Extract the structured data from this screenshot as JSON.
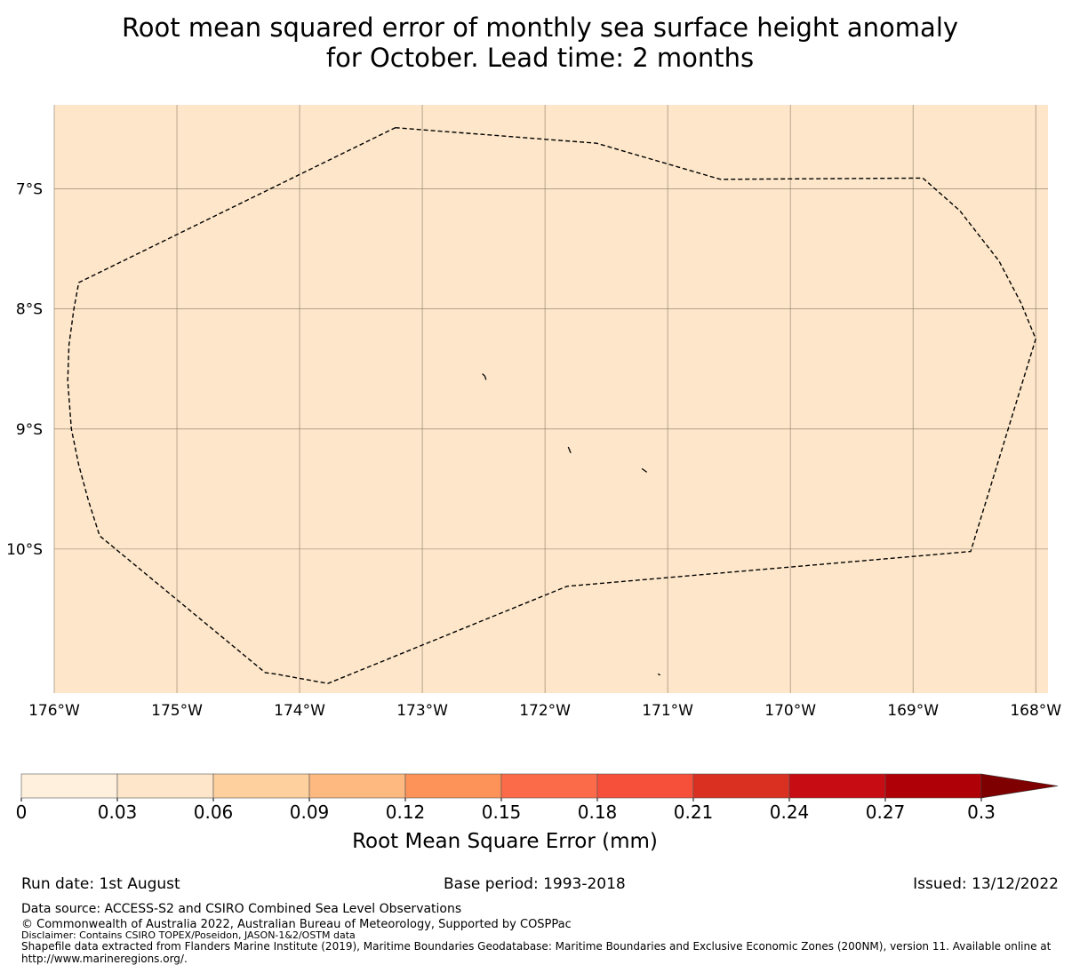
{
  "title": {
    "line1": "Root mean squared error of monthly sea surface height anomaly",
    "line2": "for October. Lead time: 2 months"
  },
  "map": {
    "background_color": "#fde6c9",
    "lon_range": [
      -176.0,
      -167.9
    ],
    "lat_range": [
      -11.2,
      -6.3
    ],
    "lat_ticks": [
      {
        "value": -7,
        "label": "7°S"
      },
      {
        "value": -8,
        "label": "8°S"
      },
      {
        "value": -9,
        "label": "9°S"
      },
      {
        "value": -10,
        "label": "10°S"
      }
    ],
    "lon_ticks": [
      {
        "value": -176,
        "label": "176°W"
      },
      {
        "value": -175,
        "label": "175°W"
      },
      {
        "value": -174,
        "label": "174°W"
      },
      {
        "value": -173,
        "label": "173°W"
      },
      {
        "value": -172,
        "label": "172°W"
      },
      {
        "value": -171,
        "label": "171°W"
      },
      {
        "value": -170,
        "label": "170°W"
      },
      {
        "value": -169,
        "label": "169°W"
      },
      {
        "value": -168,
        "label": "168°W"
      }
    ],
    "eez_boundary": [
      [
        -173.22,
        -6.49
      ],
      [
        -171.58,
        -6.62
      ],
      [
        -170.57,
        -6.92
      ],
      [
        -168.92,
        -6.91
      ],
      [
        -168.62,
        -7.18
      ],
      [
        -168.3,
        -7.6
      ],
      [
        -168.12,
        -7.95
      ],
      [
        -168.0,
        -8.25
      ],
      [
        -168.53,
        -10.02
      ],
      [
        -171.82,
        -10.31
      ],
      [
        -173.77,
        -11.12
      ],
      [
        -174.2,
        -11.04
      ],
      [
        -174.28,
        -11.03
      ],
      [
        -175.63,
        -9.89
      ],
      [
        -175.72,
        -9.6
      ],
      [
        -175.8,
        -9.3
      ],
      [
        -175.86,
        -9.0
      ],
      [
        -175.89,
        -8.6
      ],
      [
        -175.88,
        -8.3
      ],
      [
        -175.84,
        -8.0
      ],
      [
        -175.8,
        -7.78
      ],
      [
        -173.22,
        -6.49
      ]
    ],
    "islands": [
      [
        [
          -172.51,
          -8.54
        ],
        [
          -172.49,
          -8.56
        ],
        [
          -172.48,
          -8.59
        ]
      ],
      [
        [
          -171.81,
          -9.15
        ],
        [
          -171.79,
          -9.2
        ]
      ],
      [
        [
          -171.21,
          -9.33
        ],
        [
          -171.17,
          -9.36
        ]
      ],
      [
        [
          -171.08,
          -11.04
        ],
        [
          -171.06,
          -11.05
        ]
      ]
    ]
  },
  "colorbar": {
    "colors": [
      "#fff0dd",
      "#fde6c9",
      "#fdd09e",
      "#fdb97f",
      "#fd9358",
      "#fc6b49",
      "#f64f3a",
      "#d93022",
      "#c70c13",
      "#ae0006"
    ],
    "extend_color": "#7f0000",
    "edges": [
      0,
      0.03,
      0.06,
      0.09,
      0.12,
      0.15,
      0.18,
      0.21,
      0.24,
      0.27,
      0.3
    ],
    "tick_labels": [
      "0",
      "0.03",
      "0.06",
      "0.09",
      "0.12",
      "0.15",
      "0.18",
      "0.21",
      "0.24",
      "0.27",
      "0.3"
    ],
    "label": "Root Mean Square Error (mm)"
  },
  "footer": {
    "run_date": "Run date: 1st August",
    "base_period": "Base period: 1993-2018",
    "issued": "Issued: 13/12/2022",
    "data_source": "Data source: ACCESS-S2 and CSIRO Combined Sea Level Observations",
    "copyright": "© Commonwealth of Australia 2022, Australian Bureau of Meteorology, Supported by COSPPac",
    "disclaimer": "Disclaimer: Contains CSIRO TOPEX/Poseidon, JASON-1&2/OSTM data",
    "shapefile": "Shapefile data extracted from Flanders Marine Institute (2019), Maritime Boundaries Geodatabase: Maritime Boundaries and Exclusive Economic Zones (200NM), version 11. Available online at http://www.marineregions.org/."
  }
}
